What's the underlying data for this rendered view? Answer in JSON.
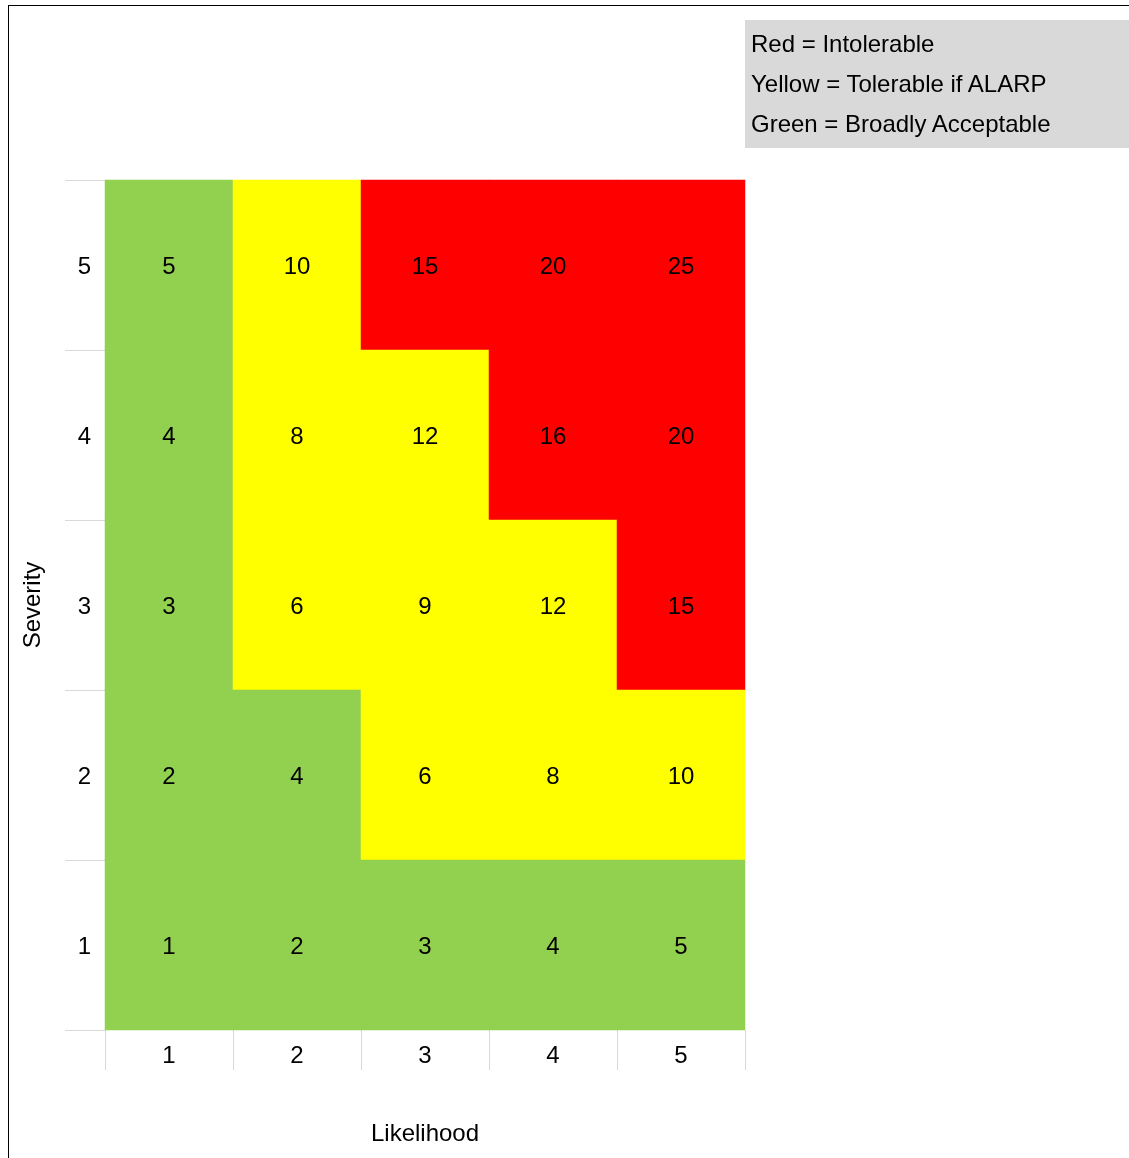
{
  "chart_data": {
    "type": "heatmap",
    "xlabel": "Likelihood",
    "ylabel": "Severity",
    "categories": [
      "1",
      "2",
      "3",
      "4",
      "5"
    ],
    "y_categories": [
      "5",
      "4",
      "3",
      "2",
      "1"
    ],
    "cells": [
      [
        5,
        10,
        15,
        20,
        25
      ],
      [
        4,
        8,
        12,
        16,
        20
      ],
      [
        3,
        6,
        9,
        12,
        15
      ],
      [
        2,
        4,
        6,
        8,
        10
      ],
      [
        1,
        2,
        3,
        4,
        5
      ]
    ],
    "colors": [
      [
        "#92d050",
        "#ffff00",
        "#ff0000",
        "#ff0000",
        "#ff0000"
      ],
      [
        "#92d050",
        "#ffff00",
        "#ffff00",
        "#ff0000",
        "#ff0000"
      ],
      [
        "#92d050",
        "#ffff00",
        "#ffff00",
        "#ffff00",
        "#ff0000"
      ],
      [
        "#92d050",
        "#92d050",
        "#ffff00",
        "#ffff00",
        "#ffff00"
      ],
      [
        "#92d050",
        "#92d050",
        "#92d050",
        "#92d050",
        "#92d050"
      ]
    ],
    "data_labels": true,
    "annotations": [
      "Red = Intolerable",
      "Yellow = Tolerable if ALARP",
      "Green = Broadly Acceptable"
    ]
  }
}
